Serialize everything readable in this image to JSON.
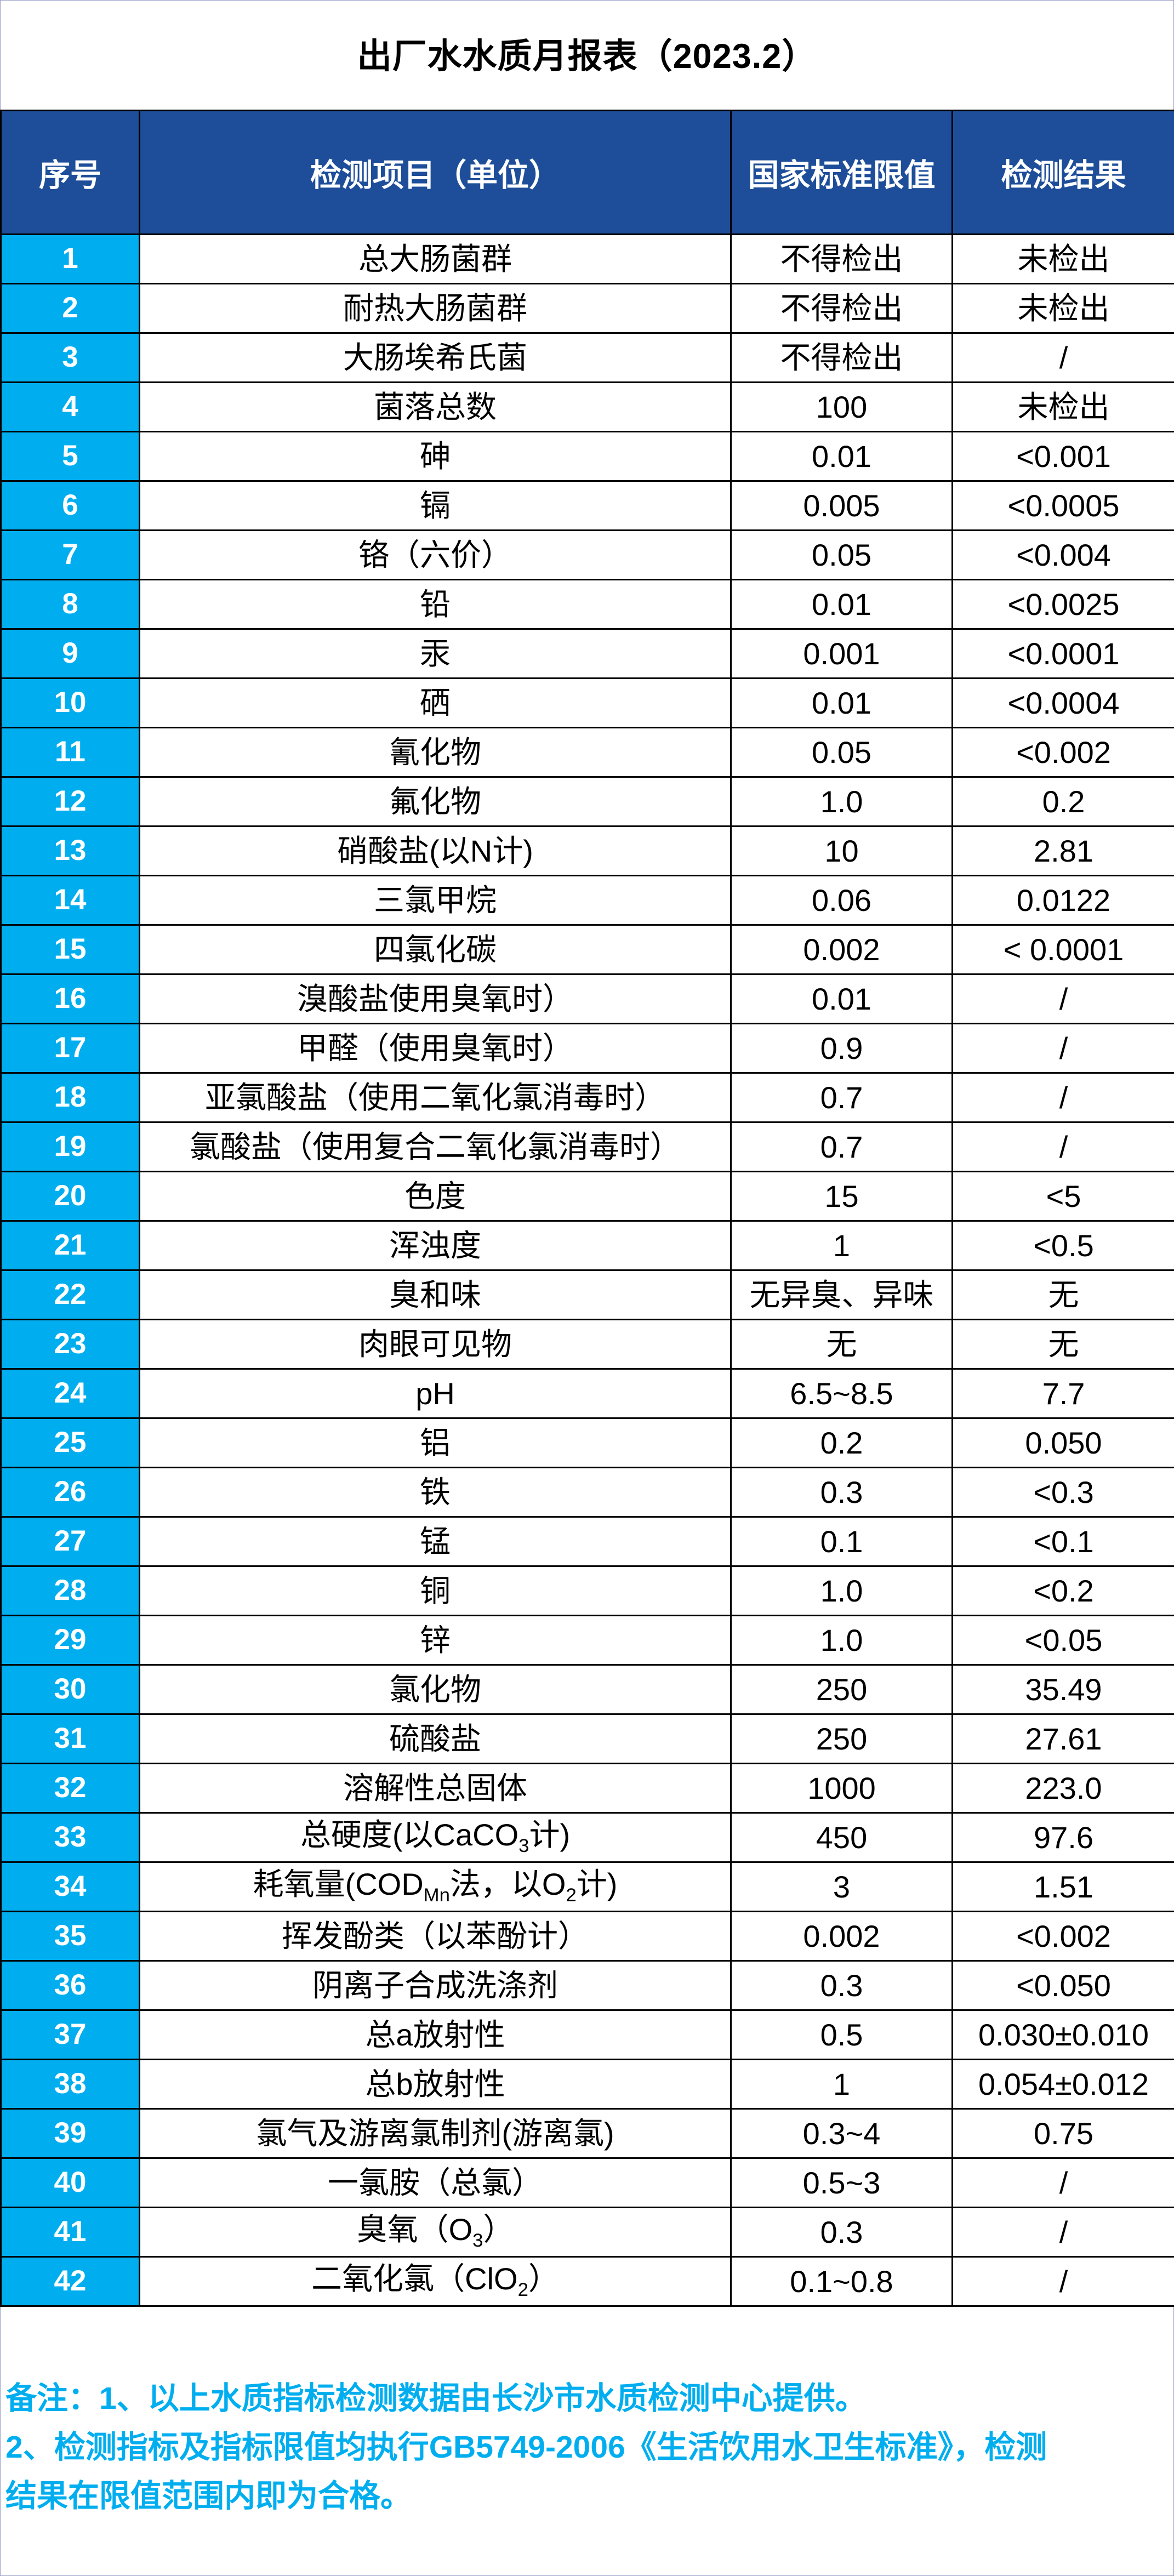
{
  "page": {
    "title": "出厂水水质月报表（2023.2）"
  },
  "table": {
    "headers": [
      "序号",
      "检测项目（单位）",
      "国家标准限值",
      "检测结果"
    ],
    "rows": [
      {
        "no": "1",
        "item": "总大肠菌群",
        "limit": "不得检出",
        "result": "未检出"
      },
      {
        "no": "2",
        "item": "耐热大肠菌群",
        "limit": "不得检出",
        "result": "未检出"
      },
      {
        "no": "3",
        "item": "大肠埃希氏菌",
        "limit": "不得检出",
        "result": "/"
      },
      {
        "no": "4",
        "item": "菌落总数",
        "limit": "100",
        "result": "未检出"
      },
      {
        "no": "5",
        "item": "砷",
        "limit": "0.01",
        "result": "<0.001"
      },
      {
        "no": "6",
        "item": "镉",
        "limit": "0.005",
        "result": "<0.0005"
      },
      {
        "no": "7",
        "item": "铬（六价）",
        "limit": "0.05",
        "result": "<0.004"
      },
      {
        "no": "8",
        "item": "铅",
        "limit": "0.01",
        "result": "<0.0025"
      },
      {
        "no": "9",
        "item": "汞",
        "limit": "0.001",
        "result": "<0.0001"
      },
      {
        "no": "10",
        "item": "硒",
        "limit": "0.01",
        "result": "<0.0004"
      },
      {
        "no": "11",
        "item": "氰化物",
        "limit": "0.05",
        "result": "<0.002"
      },
      {
        "no": "12",
        "item": "氟化物",
        "limit": "1.0",
        "result": "0.2"
      },
      {
        "no": "13",
        "item": "硝酸盐(以N计)",
        "limit": "10",
        "result": "2.81"
      },
      {
        "no": "14",
        "item": "三氯甲烷",
        "limit": "0.06",
        "result": "0.0122"
      },
      {
        "no": "15",
        "item": "四氯化碳",
        "limit": "0.002",
        "result": "< 0.0001"
      },
      {
        "no": "16",
        "item": "溴酸盐使用臭氧时）",
        "limit": "0.01",
        "result": "/"
      },
      {
        "no": "17",
        "item": "甲醛（使用臭氧时）",
        "limit": "0.9",
        "result": "/"
      },
      {
        "no": "18",
        "item": "亚氯酸盐（使用二氧化氯消毒时）",
        "limit": "0.7",
        "result": "/"
      },
      {
        "no": "19",
        "item": "氯酸盐（使用复合二氧化氯消毒时）",
        "limit": "0.7",
        "result": "/"
      },
      {
        "no": "20",
        "item": "色度",
        "limit": "15",
        "result": "<5"
      },
      {
        "no": "21",
        "item": "浑浊度",
        "limit": "1",
        "result": "<0.5"
      },
      {
        "no": "22",
        "item": "臭和味",
        "limit": "无异臭、异味",
        "result": "无"
      },
      {
        "no": "23",
        "item": "肉眼可见物",
        "limit": "无",
        "result": "无"
      },
      {
        "no": "24",
        "item": "pH",
        "limit": "6.5~8.5",
        "result": "7.7"
      },
      {
        "no": "25",
        "item": "铝",
        "limit": "0.2",
        "result": "0.050"
      },
      {
        "no": "26",
        "item": "铁",
        "limit": "0.3",
        "result": "<0.3"
      },
      {
        "no": "27",
        "item": "锰",
        "limit": "0.1",
        "result": "<0.1"
      },
      {
        "no": "28",
        "item": "铜",
        "limit": "1.0",
        "result": "<0.2"
      },
      {
        "no": "29",
        "item": "锌",
        "limit": "1.0",
        "result": "<0.05"
      },
      {
        "no": "30",
        "item": "氯化物",
        "limit": "250",
        "result": "35.49"
      },
      {
        "no": "31",
        "item": "硫酸盐",
        "limit": "250",
        "result": "27.61"
      },
      {
        "no": "32",
        "item": "溶解性总固体",
        "limit": "1000",
        "result": "223.0"
      },
      {
        "no": "33",
        "item": "总硬度(以CaCO_{3}计)",
        "limit": "450",
        "result": "97.6"
      },
      {
        "no": "34",
        "item": "耗氧量(COD_{Mn}法，以O_{2}计)",
        "limit": "3",
        "result": "1.51"
      },
      {
        "no": "35",
        "item": "挥发酚类（以苯酚计）",
        "limit": "0.002",
        "result": "<0.002"
      },
      {
        "no": "36",
        "item": "阴离子合成洗涤剂",
        "limit": "0.3",
        "result": "<0.050"
      },
      {
        "no": "37",
        "item": "总a放射性",
        "limit": "0.5",
        "result": "0.030±0.010"
      },
      {
        "no": "38",
        "item": "总b放射性",
        "limit": "1",
        "result": "0.054±0.012"
      },
      {
        "no": "39",
        "item": "氯气及游离氯制剂(游离氯)",
        "limit": "0.3~4",
        "result": "0.75"
      },
      {
        "no": "40",
        "item": "一氯胺（总氯）",
        "limit": "0.5~3",
        "result": "/"
      },
      {
        "no": "41",
        "item": "臭氧（O_{3}）",
        "limit": "0.3",
        "result": "/"
      },
      {
        "no": "42",
        "item": "二氧化氯（ClO_{2}）",
        "limit": "0.1~0.8",
        "result": "/"
      }
    ]
  },
  "notes": {
    "lines": [
      "备注：1、以上水质指标检测数据由长沙市水质检测中心提供。",
      "2、检测指标及指标限值均执行GB5749-2006《生活饮用水卫生标准》，检测",
      "结果在限值范围内即为合格。"
    ]
  },
  "colors": {
    "header_bg": "#1E4E9A",
    "index_bg": "#00AEEF",
    "note_text": "#00AEEF",
    "border": "#000000",
    "title_text": "#000000"
  }
}
